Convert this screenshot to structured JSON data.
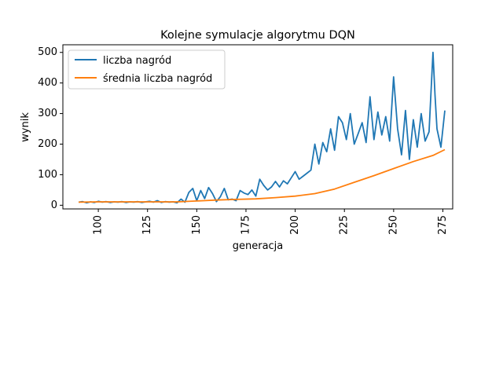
{
  "chart_data": {
    "type": "line",
    "title": "Kolejne symulacje algorytmu DQN",
    "xlabel": "generacja",
    "ylabel": "wynik",
    "xlim": [
      82,
      280
    ],
    "ylim": [
      -12,
      525
    ],
    "xticks": [
      100,
      125,
      150,
      175,
      200,
      225,
      250,
      275
    ],
    "yticks": [
      0,
      100,
      200,
      300,
      400,
      500
    ],
    "xtick_rotation": 90,
    "grid": false,
    "legend": {
      "placement": "top-left"
    },
    "series": [
      {
        "name": "liczba nagród",
        "color": "#1f77b4",
        "x": [
          90,
          92,
          94,
          96,
          98,
          100,
          102,
          104,
          106,
          108,
          110,
          112,
          114,
          116,
          118,
          120,
          122,
          124,
          126,
          128,
          130,
          132,
          134,
          136,
          138,
          140,
          142,
          144,
          146,
          148,
          150,
          152,
          154,
          156,
          158,
          160,
          162,
          164,
          166,
          168,
          170,
          172,
          174,
          176,
          178,
          180,
          182,
          184,
          186,
          188,
          190,
          192,
          194,
          196,
          198,
          200,
          202,
          204,
          206,
          208,
          210,
          212,
          214,
          216,
          218,
          220,
          222,
          224,
          226,
          228,
          230,
          232,
          234,
          236,
          238,
          240,
          242,
          244,
          246,
          248,
          250,
          252,
          254,
          256,
          258,
          260,
          262,
          264,
          266,
          268,
          270,
          271,
          272,
          274,
          276
        ],
        "values": [
          10,
          12,
          8,
          11,
          9,
          13,
          10,
          12,
          9,
          11,
          10,
          12,
          9,
          11,
          10,
          12,
          9,
          11,
          13,
          10,
          15,
          9,
          12,
          10,
          11,
          8,
          20,
          10,
          42,
          55,
          15,
          48,
          22,
          58,
          38,
          12,
          28,
          55,
          18,
          20,
          15,
          48,
          40,
          35,
          50,
          30,
          85,
          65,
          50,
          60,
          78,
          60,
          80,
          70,
          90,
          110,
          85,
          95,
          105,
          115,
          200,
          135,
          205,
          175,
          250,
          180,
          290,
          270,
          215,
          300,
          200,
          235,
          270,
          205,
          355,
          215,
          305,
          230,
          290,
          210,
          420,
          250,
          165,
          310,
          150,
          280,
          190,
          300,
          210,
          240,
          500,
          360,
          250,
          190,
          310
        ]
      },
      {
        "name": "średnia liczba nagród",
        "color": "#ff7f0e",
        "x": [
          90,
          100,
          110,
          120,
          130,
          140,
          150,
          160,
          170,
          180,
          190,
          200,
          210,
          220,
          230,
          240,
          250,
          260,
          270,
          276
        ],
        "values": [
          10,
          11,
          11,
          11,
          11,
          11,
          14,
          17,
          19,
          21,
          25,
          30,
          38,
          53,
          75,
          97,
          120,
          143,
          163,
          182
        ]
      }
    ]
  }
}
